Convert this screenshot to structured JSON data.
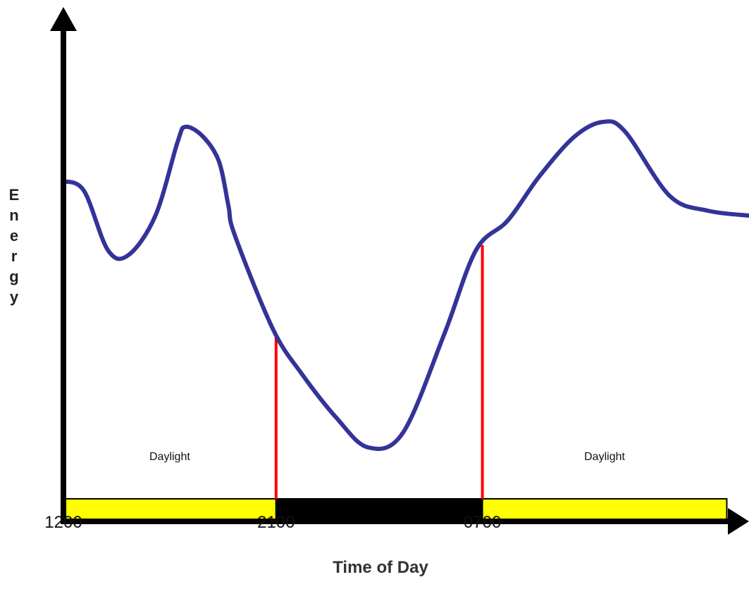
{
  "chart_data": {
    "type": "line",
    "xlabel": "Time of Day",
    "ylabel": "Energy",
    "x_ticks": [
      "1200",
      "2100",
      "0700"
    ],
    "series": [
      {
        "color": "#333399",
        "points": [
          {
            "x": 0.0,
            "y": 0.69
          },
          {
            "x": 0.65,
            "y": 0.67
          },
          {
            "x": 1.4,
            "y": 0.55
          },
          {
            "x": 2.05,
            "y": 0.54
          },
          {
            "x": 2.9,
            "y": 0.62
          },
          {
            "x": 3.6,
            "y": 0.77
          },
          {
            "x": 3.85,
            "y": 0.8
          },
          {
            "x": 4.4,
            "y": 0.78
          },
          {
            "x": 4.9,
            "y": 0.73
          },
          {
            "x": 5.2,
            "y": 0.64
          },
          {
            "x": 5.4,
            "y": 0.58
          },
          {
            "x": 6.6,
            "y": 0.39
          },
          {
            "x": 7.5,
            "y": 0.3
          },
          {
            "x": 8.6,
            "y": 0.21
          },
          {
            "x": 9.6,
            "y": 0.15
          },
          {
            "x": 10.7,
            "y": 0.18
          },
          {
            "x": 12.0,
            "y": 0.38
          },
          {
            "x": 13.0,
            "y": 0.55
          },
          {
            "x": 14.0,
            "y": 0.61
          },
          {
            "x": 15.0,
            "y": 0.7
          },
          {
            "x": 16.1,
            "y": 0.78
          },
          {
            "x": 17.0,
            "y": 0.81
          },
          {
            "x": 17.7,
            "y": 0.79
          },
          {
            "x": 19.1,
            "y": 0.66
          },
          {
            "x": 20.3,
            "y": 0.63
          },
          {
            "x": 21.6,
            "y": 0.62
          }
        ]
      }
    ],
    "markers": [
      {
        "x": 6.7,
        "y": 0.38,
        "color": "#ff0000"
      },
      {
        "x": 13.2,
        "y": 0.56,
        "color": "#ff0000"
      }
    ],
    "bands": [
      {
        "start": 0,
        "end": 6.7,
        "color": "#ffff00",
        "label": "Daylight"
      },
      {
        "start": 6.7,
        "end": 13.2,
        "color": "#000000",
        "label": ""
      },
      {
        "start": 13.2,
        "end": 20.9,
        "color": "#ffff00",
        "label": "Daylight"
      }
    ],
    "xlim": [
      0,
      21.6
    ],
    "ylim": [
      0,
      1
    ],
    "grid": false
  }
}
